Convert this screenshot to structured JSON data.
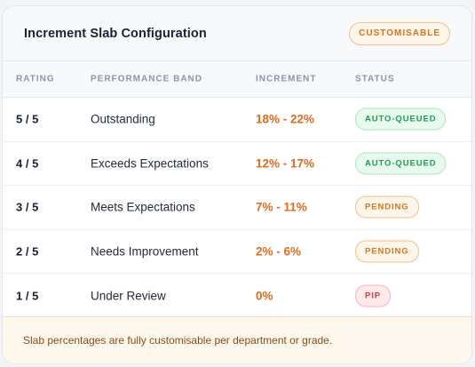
{
  "header": {
    "title": "Increment Slab Configuration",
    "badge": "CUSTOMISABLE"
  },
  "columns": {
    "rating": "RATING",
    "band": "PERFORMANCE BAND",
    "increment": "INCREMENT",
    "status": "STATUS"
  },
  "rows": [
    {
      "rating": "5 / 5",
      "band": "Outstanding",
      "increment": "18% - 22%",
      "status": "AUTO-QUEUED",
      "status_type": "auto"
    },
    {
      "rating": "4 / 5",
      "band": "Exceeds Expectations",
      "increment": "12% - 17%",
      "status": "AUTO-QUEUED",
      "status_type": "auto"
    },
    {
      "rating": "3 / 5",
      "band": "Meets Expectations",
      "increment": "7% - 11%",
      "status": "PENDING",
      "status_type": "pending"
    },
    {
      "rating": "2 / 5",
      "band": "Needs Improvement",
      "increment": "2% - 6%",
      "status": "PENDING",
      "status_type": "pending"
    },
    {
      "rating": "1 / 5",
      "band": "Under Review",
      "increment": "0%",
      "status": "PIP",
      "status_type": "pip"
    }
  ],
  "footer": {
    "note": "Slab percentages are fully customisable per department or grade."
  },
  "colors": {
    "accent_orange": "#dd6b20",
    "status_auto": "#1f9d55",
    "status_pending": "#d9731f",
    "status_pip": "#dc3545"
  }
}
